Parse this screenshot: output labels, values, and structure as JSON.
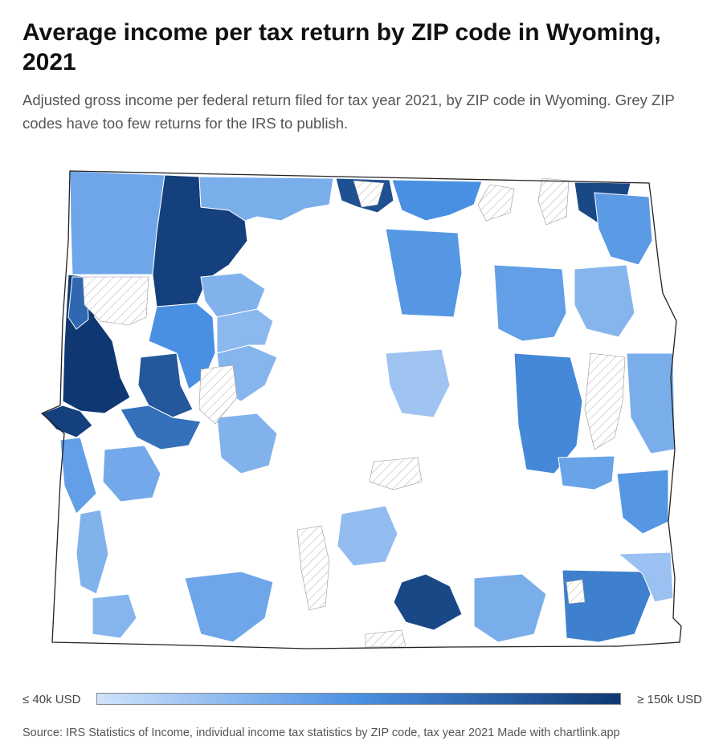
{
  "header": {
    "title": "Average income per tax return by ZIP code in Wyoming, 2021",
    "subtitle": "Adjusted gross income per federal return filed for tax year 2021, by ZIP code in Wyoming. Grey ZIP codes have too few returns for the IRS to publish."
  },
  "map": {
    "state": "Wyoming",
    "colors": {
      "low": "#cfe2fb",
      "high": "#0f3873",
      "no_data_fill": "#ffffff",
      "hatch": "#bbbbbb",
      "boundary": "#222222"
    },
    "regions": [
      {
        "id": "zip-nw-top",
        "income_k": 80
      },
      {
        "id": "zip-cody-north",
        "income_k": 145
      },
      {
        "id": "zip-powell",
        "income_k": 75
      },
      {
        "id": "zip-lovell",
        "income_k": 135
      },
      {
        "id": "zip-sheridan-west",
        "income_k": 95
      },
      {
        "id": "zip-sheridan",
        "income_k": 140
      },
      {
        "id": "zip-buffalo",
        "income_k": 90
      },
      {
        "id": "zip-gillette",
        "income_k": 85
      },
      {
        "id": "zip-moorcroft",
        "income_k": 70
      },
      {
        "id": "zip-sundance",
        "income_k": 88
      },
      {
        "id": "zip-jackson",
        "income_k": 150
      },
      {
        "id": "zip-wilson",
        "income_k": 145
      },
      {
        "id": "zip-teton-east",
        "income_k": 130
      },
      {
        "id": "zip-alta",
        "income_k": 120
      },
      {
        "id": "zip-dubois",
        "income_k": 95
      },
      {
        "id": "zip-pinedale",
        "income_k": 115
      },
      {
        "id": "zip-big-piney",
        "income_k": 85
      },
      {
        "id": "zip-lander",
        "income_k": 72
      },
      {
        "id": "zip-riverton",
        "income_k": 70
      },
      {
        "id": "zip-thermopolis",
        "income_k": 68
      },
      {
        "id": "zip-worland",
        "income_k": 72
      },
      {
        "id": "zip-casper",
        "income_k": 100
      },
      {
        "id": "zip-douglas",
        "income_k": 82
      },
      {
        "id": "zip-wheatland",
        "income_k": 90
      },
      {
        "id": "zip-torrington",
        "income_k": 75
      },
      {
        "id": "zip-rock-springs",
        "income_k": 80
      },
      {
        "id": "zip-green-river",
        "income_k": 78
      },
      {
        "id": "zip-kemmerer",
        "income_k": 72
      },
      {
        "id": "zip-evanston",
        "income_k": 70
      },
      {
        "id": "zip-rawlins",
        "income_k": 65
      },
      {
        "id": "zip-saratoga",
        "income_k": 140
      },
      {
        "id": "zip-laramie",
        "income_k": 75
      },
      {
        "id": "zip-cheyenne",
        "income_k": 105
      },
      {
        "id": "zip-pine-bluffs",
        "income_k": 62
      },
      {
        "id": "zip-afton",
        "income_k": 60
      }
    ]
  },
  "legend": {
    "min_label": "≤ 40k USD",
    "max_label": "≥ 150k USD",
    "min_value_k": 40,
    "max_value_k": 150
  },
  "source": "Source: IRS Statistics of Income, individual income tax statistics by ZIP code, tax year 2021 Made with chartlink.app"
}
